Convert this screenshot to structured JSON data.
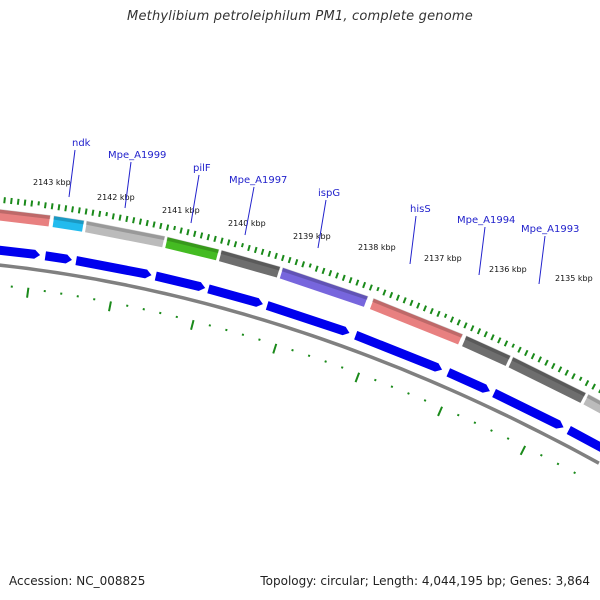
{
  "header": {
    "title": "Methylibium petroleiphilum PM1, complete genome"
  },
  "footer": {
    "accession": "Accession: NC_008825",
    "topology": "Topology: circular; Length: 4,044,195 bp; Genes: 3,864"
  },
  "colors": {
    "cds_arrow": "#0000ee",
    "backbone": "#808080",
    "tick": "#1a8a1a",
    "gene_label": "#2222cc",
    "leader_line": "#2222cc"
  },
  "kbp_ticks": [
    {
      "label": "2143 kbp"
    },
    {
      "label": "2142 kbp"
    },
    {
      "label": "2141 kbp"
    },
    {
      "label": "2140 kbp"
    },
    {
      "label": "2139 kbp"
    },
    {
      "label": "2138 kbp"
    },
    {
      "label": "2137 kbp"
    },
    {
      "label": "2136 kbp"
    },
    {
      "label": "2135 kbp"
    }
  ],
  "gene_labels": [
    {
      "label": "ndk"
    },
    {
      "label": "Mpe_A1999"
    },
    {
      "label": "pilF"
    },
    {
      "label": "Mpe_A1997"
    },
    {
      "label": "ispG"
    },
    {
      "label": "hisS"
    },
    {
      "label": "Mpe_A1994"
    },
    {
      "label": "Mpe_A1993"
    }
  ],
  "feature_segments": [
    {
      "name": "segment-1",
      "color": "#e88080"
    },
    {
      "name": "segment-ndk",
      "color": "#22bbee"
    },
    {
      "name": "segment-mpe-a1999",
      "color": "#bbbbbb"
    },
    {
      "name": "segment-pilf",
      "color": "#44bb22"
    },
    {
      "name": "segment-mpe-a1997",
      "color": "#6e6e6e"
    },
    {
      "name": "segment-ispg",
      "color": "#7766dd"
    },
    {
      "name": "segment-hiss",
      "color": "#e88080"
    },
    {
      "name": "segment-mpe-a1994",
      "color": "#6e6e6e"
    },
    {
      "name": "segment-mpe-a1993",
      "color": "#6e6e6e"
    },
    {
      "name": "segment-last",
      "color": "#bbbbbb"
    }
  ]
}
